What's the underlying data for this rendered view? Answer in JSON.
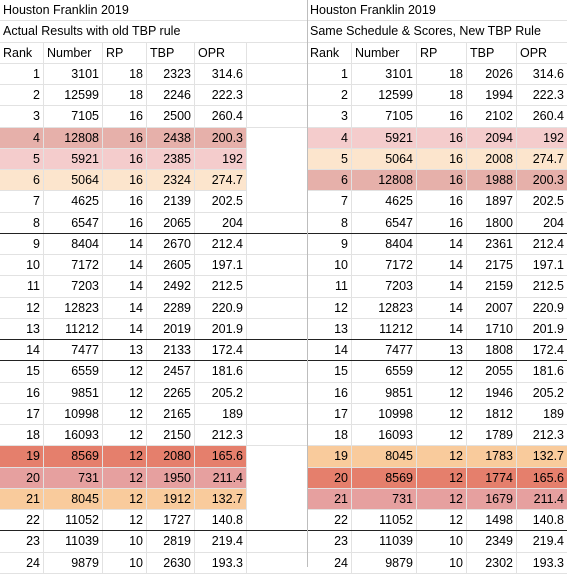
{
  "colors": {
    "light_pink": "#f4cccc",
    "pink": "#e6a09f",
    "dark_pink": "#e6b0aa",
    "light_peach": "#fce5cd",
    "peach": "#f9cb9c",
    "salmon": "#e8917d",
    "red_salmon": "#e57f6c"
  },
  "left": {
    "title": "Houston Franklin 2019",
    "subtitle": "Actual Results with old TBP rule",
    "headers": [
      "Rank",
      "Number",
      "RP",
      "TBP",
      "OPR"
    ],
    "rows": [
      {
        "rank": "1",
        "number": "3101",
        "rp": "18",
        "tbp": "2323",
        "opr": "314.6",
        "color": "",
        "thick": false
      },
      {
        "rank": "2",
        "number": "12599",
        "rp": "18",
        "tbp": "2246",
        "opr": "222.3",
        "color": "",
        "thick": false
      },
      {
        "rank": "3",
        "number": "7105",
        "rp": "16",
        "tbp": "2500",
        "opr": "260.4",
        "color": "",
        "thick": false
      },
      {
        "rank": "4",
        "number": "12808",
        "rp": "16",
        "tbp": "2438",
        "opr": "200.3",
        "color": "#e6b0aa",
        "thick": false
      },
      {
        "rank": "5",
        "number": "5921",
        "rp": "16",
        "tbp": "2385",
        "opr": "192",
        "color": "#f4cccc",
        "thick": false
      },
      {
        "rank": "6",
        "number": "5064",
        "rp": "16",
        "tbp": "2324",
        "opr": "274.7",
        "color": "#fce5cd",
        "thick": false
      },
      {
        "rank": "7",
        "number": "4625",
        "rp": "16",
        "tbp": "2139",
        "opr": "202.5",
        "color": "",
        "thick": false
      },
      {
        "rank": "8",
        "number": "6547",
        "rp": "16",
        "tbp": "2065",
        "opr": "204",
        "color": "",
        "thick": true
      },
      {
        "rank": "9",
        "number": "8404",
        "rp": "14",
        "tbp": "2670",
        "opr": "212.4",
        "color": "",
        "thick": false
      },
      {
        "rank": "10",
        "number": "7172",
        "rp": "14",
        "tbp": "2605",
        "opr": "197.1",
        "color": "",
        "thick": false
      },
      {
        "rank": "11",
        "number": "7203",
        "rp": "14",
        "tbp": "2492",
        "opr": "212.5",
        "color": "",
        "thick": false
      },
      {
        "rank": "12",
        "number": "12823",
        "rp": "14",
        "tbp": "2289",
        "opr": "220.9",
        "color": "",
        "thick": false
      },
      {
        "rank": "13",
        "number": "11212",
        "rp": "14",
        "tbp": "2019",
        "opr": "201.9",
        "color": "",
        "thick": true
      },
      {
        "rank": "14",
        "number": "7477",
        "rp": "13",
        "tbp": "2133",
        "opr": "172.4",
        "color": "",
        "thick": true
      },
      {
        "rank": "15",
        "number": "6559",
        "rp": "12",
        "tbp": "2457",
        "opr": "181.6",
        "color": "",
        "thick": false
      },
      {
        "rank": "16",
        "number": "9851",
        "rp": "12",
        "tbp": "2265",
        "opr": "205.2",
        "color": "",
        "thick": false
      },
      {
        "rank": "17",
        "number": "10998",
        "rp": "12",
        "tbp": "2165",
        "opr": "189",
        "color": "",
        "thick": false
      },
      {
        "rank": "18",
        "number": "16093",
        "rp": "12",
        "tbp": "2150",
        "opr": "212.3",
        "color": "",
        "thick": false
      },
      {
        "rank": "19",
        "number": "8569",
        "rp": "12",
        "tbp": "2080",
        "opr": "165.6",
        "color": "#e57f6c",
        "thick": false
      },
      {
        "rank": "20",
        "number": "731",
        "rp": "12",
        "tbp": "1950",
        "opr": "211.4",
        "color": "#e6a09f",
        "thick": false
      },
      {
        "rank": "21",
        "number": "8045",
        "rp": "12",
        "tbp": "1912",
        "opr": "132.7",
        "color": "#f9cb9c",
        "thick": false
      },
      {
        "rank": "22",
        "number": "11052",
        "rp": "12",
        "tbp": "1727",
        "opr": "140.8",
        "color": "",
        "thick": true
      },
      {
        "rank": "23",
        "number": "11039",
        "rp": "10",
        "tbp": "2819",
        "opr": "219.4",
        "color": "",
        "thick": false
      },
      {
        "rank": "24",
        "number": "9879",
        "rp": "10",
        "tbp": "2630",
        "opr": "193.3",
        "color": "",
        "thick": false
      }
    ]
  },
  "right": {
    "title": "Houston Franklin 2019",
    "subtitle": "Same Schedule & Scores, New TBP Rule",
    "headers": [
      "Rank",
      "Number",
      "RP",
      "TBP",
      "OPR"
    ],
    "rows": [
      {
        "rank": "1",
        "number": "3101",
        "rp": "18",
        "tbp": "2026",
        "opr": "314.6",
        "color": "",
        "thick": false
      },
      {
        "rank": "2",
        "number": "12599",
        "rp": "18",
        "tbp": "1994",
        "opr": "222.3",
        "color": "",
        "thick": false
      },
      {
        "rank": "3",
        "number": "7105",
        "rp": "16",
        "tbp": "2102",
        "opr": "260.4",
        "color": "",
        "thick": false
      },
      {
        "rank": "4",
        "number": "5921",
        "rp": "16",
        "tbp": "2094",
        "opr": "192",
        "color": "#f4cccc",
        "thick": false
      },
      {
        "rank": "5",
        "number": "5064",
        "rp": "16",
        "tbp": "2008",
        "opr": "274.7",
        "color": "#fce5cd",
        "thick": false
      },
      {
        "rank": "6",
        "number": "12808",
        "rp": "16",
        "tbp": "1988",
        "opr": "200.3",
        "color": "#e6b0aa",
        "thick": false
      },
      {
        "rank": "7",
        "number": "4625",
        "rp": "16",
        "tbp": "1897",
        "opr": "202.5",
        "color": "",
        "thick": false
      },
      {
        "rank": "8",
        "number": "6547",
        "rp": "16",
        "tbp": "1800",
        "opr": "204",
        "color": "",
        "thick": true
      },
      {
        "rank": "9",
        "number": "8404",
        "rp": "14",
        "tbp": "2361",
        "opr": "212.4",
        "color": "",
        "thick": false
      },
      {
        "rank": "10",
        "number": "7172",
        "rp": "14",
        "tbp": "2175",
        "opr": "197.1",
        "color": "",
        "thick": false
      },
      {
        "rank": "11",
        "number": "7203",
        "rp": "14",
        "tbp": "2159",
        "opr": "212.5",
        "color": "",
        "thick": false
      },
      {
        "rank": "12",
        "number": "12823",
        "rp": "14",
        "tbp": "2007",
        "opr": "220.9",
        "color": "",
        "thick": false
      },
      {
        "rank": "13",
        "number": "11212",
        "rp": "14",
        "tbp": "1710",
        "opr": "201.9",
        "color": "",
        "thick": true
      },
      {
        "rank": "14",
        "number": "7477",
        "rp": "13",
        "tbp": "1808",
        "opr": "172.4",
        "color": "",
        "thick": true
      },
      {
        "rank": "15",
        "number": "6559",
        "rp": "12",
        "tbp": "2055",
        "opr": "181.6",
        "color": "",
        "thick": false
      },
      {
        "rank": "16",
        "number": "9851",
        "rp": "12",
        "tbp": "1946",
        "opr": "205.2",
        "color": "",
        "thick": false
      },
      {
        "rank": "17",
        "number": "10998",
        "rp": "12",
        "tbp": "1812",
        "opr": "189",
        "color": "",
        "thick": false
      },
      {
        "rank": "18",
        "number": "16093",
        "rp": "12",
        "tbp": "1789",
        "opr": "212.3",
        "color": "",
        "thick": false
      },
      {
        "rank": "19",
        "number": "8045",
        "rp": "12",
        "tbp": "1783",
        "opr": "132.7",
        "color": "#f9cb9c",
        "thick": false
      },
      {
        "rank": "20",
        "number": "8569",
        "rp": "12",
        "tbp": "1774",
        "opr": "165.6",
        "color": "#e57f6c",
        "thick": false
      },
      {
        "rank": "21",
        "number": "731",
        "rp": "12",
        "tbp": "1679",
        "opr": "211.4",
        "color": "#e6a09f",
        "thick": false
      },
      {
        "rank": "22",
        "number": "11052",
        "rp": "12",
        "tbp": "1498",
        "opr": "140.8",
        "color": "",
        "thick": true
      },
      {
        "rank": "23",
        "number": "11039",
        "rp": "10",
        "tbp": "2349",
        "opr": "219.4",
        "color": "",
        "thick": false
      },
      {
        "rank": "24",
        "number": "9879",
        "rp": "10",
        "tbp": "2302",
        "opr": "193.3",
        "color": "",
        "thick": false
      }
    ]
  }
}
